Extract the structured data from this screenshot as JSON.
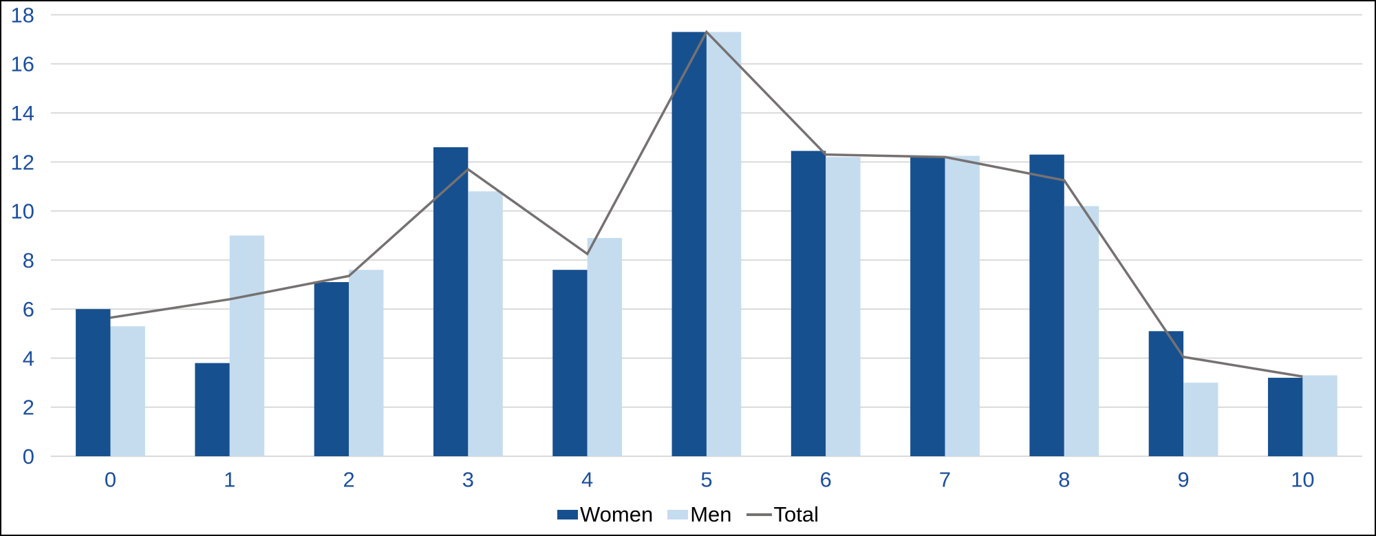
{
  "window": {
    "background": "#FFFFFF",
    "frame_border_color": "#000000"
  },
  "chart_data": {
    "type": "bar",
    "title": "",
    "xlabel": "",
    "ylabel": "",
    "categories": [
      "0",
      "1",
      "2",
      "3",
      "4",
      "5",
      "6",
      "7",
      "8",
      "9",
      "10"
    ],
    "series": [
      {
        "name": "Women",
        "type": "bar",
        "color": "#17508F",
        "values": [
          6.0,
          3.8,
          7.1,
          12.6,
          7.6,
          17.3,
          12.45,
          12.2,
          12.3,
          5.1,
          3.2
        ]
      },
      {
        "name": "Men",
        "type": "bar",
        "color": "#C5DCEF",
        "values": [
          5.3,
          9.0,
          7.6,
          10.8,
          8.9,
          17.3,
          12.2,
          12.25,
          10.2,
          3.0,
          3.3
        ]
      },
      {
        "name": "Total",
        "type": "line",
        "color": "#767171",
        "values": [
          5.65,
          6.4,
          7.35,
          11.7,
          8.25,
          17.3,
          12.3,
          12.2,
          11.25,
          4.05,
          3.25
        ]
      }
    ],
    "ylim": [
      0,
      18
    ],
    "ytick_step": 2,
    "ytick_labels": [
      "0",
      "2",
      "4",
      "6",
      "8",
      "10",
      "12",
      "14",
      "16",
      "18"
    ],
    "grid": "horizontal",
    "gridline_color": "#D9D9D9",
    "axis_tick_label_color": "#1B4F9D",
    "legend_position": "bottom-center",
    "legend_text_color": "#000000"
  }
}
